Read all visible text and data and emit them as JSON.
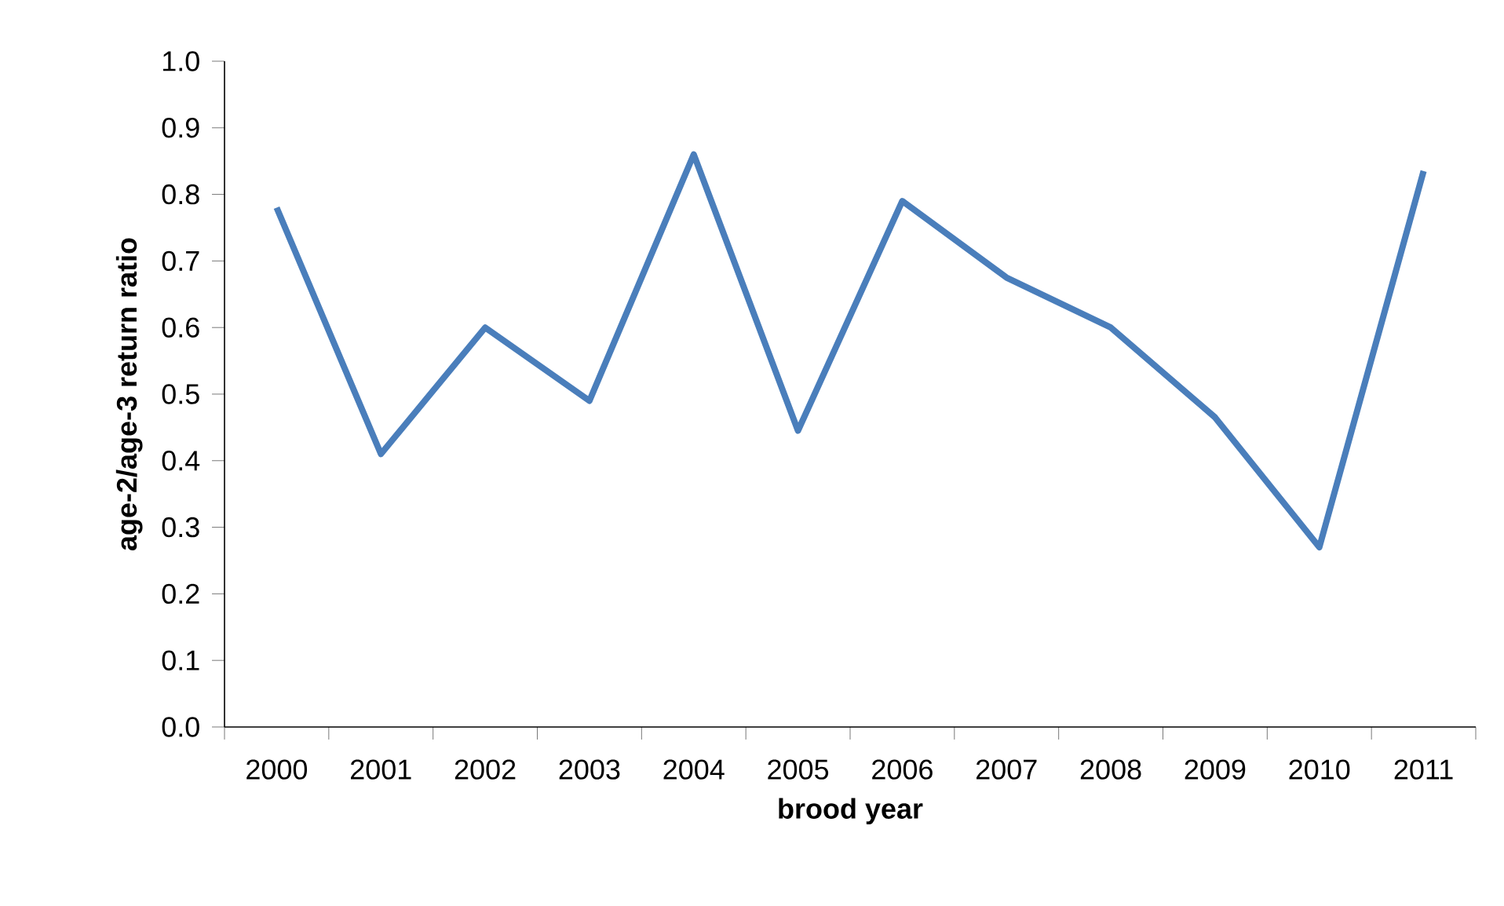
{
  "chart_data": {
    "type": "line",
    "xlabel": "brood year",
    "ylabel": "age-2/age-3 return ratio",
    "categories": [
      "2000",
      "2001",
      "2002",
      "2003",
      "2004",
      "2005",
      "2006",
      "2007",
      "2008",
      "2009",
      "2010",
      "2011"
    ],
    "series": [
      {
        "color": "#4a7ebb",
        "values": [
          0.78,
          0.41,
          0.6,
          0.49,
          0.86,
          0.445,
          0.79,
          0.675,
          0.6,
          0.465,
          0.27,
          0.835
        ]
      }
    ],
    "ylim": [
      0,
      1
    ],
    "yticks": [
      {
        "value": 0,
        "label": "0.0"
      },
      {
        "value": 0.1,
        "label": "0.1"
      },
      {
        "value": 0.2,
        "label": "0.2"
      },
      {
        "value": 0.3,
        "label": "0.3"
      },
      {
        "value": 0.4,
        "label": "0.4"
      },
      {
        "value": 0.5,
        "label": "0.5"
      },
      {
        "value": 0.6,
        "label": "0.6"
      },
      {
        "value": 0.7,
        "label": "0.7"
      },
      {
        "value": 0.8,
        "label": "0.8"
      },
      {
        "value": 0.9,
        "label": "0.9"
      },
      {
        "value": 1,
        "label": "1.0"
      }
    ],
    "grid": false,
    "marker": "none",
    "line_style": "solid"
  }
}
